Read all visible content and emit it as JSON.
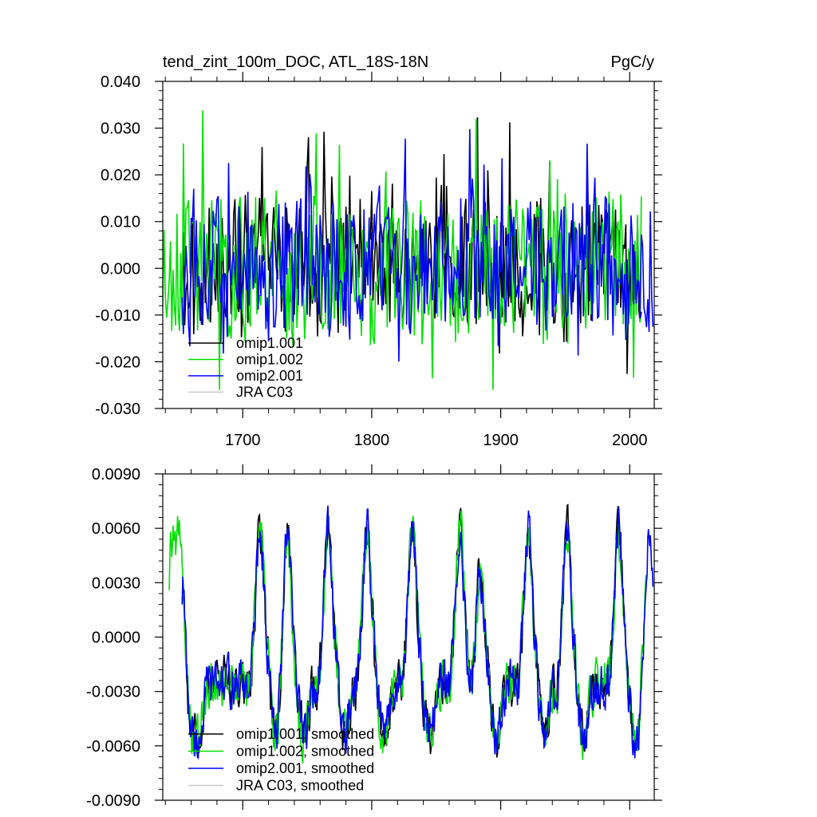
{
  "chart_data": [
    {
      "type": "line",
      "title": "tend_zint_100m_DOC, ATL_18S-18N",
      "units": "PgC/y",
      "xlim": [
        1638,
        2019
      ],
      "ylim": [
        -0.03,
        0.04
      ],
      "yticks": [
        -0.03,
        -0.02,
        -0.01,
        0.0,
        0.01,
        0.02,
        0.03,
        0.04
      ],
      "ytick_labels": [
        "-0.030",
        "-0.020",
        "-0.010",
        "0.000",
        "0.010",
        "0.020",
        "0.030",
        "0.040"
      ],
      "xticks": [
        1700,
        1800,
        1900,
        2000
      ],
      "xtick_labels": [
        "1700",
        "1800",
        "1900",
        "2000"
      ],
      "legend_position": "lower-left",
      "series": [
        {
          "name": "omip1.001",
          "color": "#000000",
          "x_start": 1653,
          "x_end": 2009,
          "amplitude": 0.0095,
          "seed": 11,
          "style": "noise"
        },
        {
          "name": "omip1.002",
          "color": "#00e000",
          "x_start": 1638,
          "x_end": 2009,
          "amplitude": 0.0105,
          "seed": 23,
          "style": "noise"
        },
        {
          "name": "omip2.001",
          "color": "#0000ff",
          "x_start": 1653,
          "x_end": 2018,
          "amplitude": 0.01,
          "seed": 37,
          "style": "noise"
        },
        {
          "name": "JRA C03",
          "color": "#c8c8c8",
          "x_start": null,
          "x_end": null,
          "amplitude": 0,
          "seed": 0,
          "style": "none"
        }
      ]
    },
    {
      "type": "line",
      "ylim": [
        -0.009,
        0.009
      ],
      "xlim": [
        1638,
        2019
      ],
      "yticks": [
        -0.009,
        -0.006,
        -0.003,
        0.0,
        0.003,
        0.006,
        0.009
      ],
      "ytick_labels": [
        "-0.0090",
        "-0.0060",
        "-0.0030",
        "0.0000",
        "0.0030",
        "0.0060",
        "0.0090"
      ],
      "xticks": [
        1700,
        1800,
        1900,
        2000
      ],
      "xtick_labels": [],
      "legend_position": "lower-left",
      "cycle_peaks": [
        1643,
        1651,
        1712,
        1733,
        1765,
        1795,
        1830,
        1867,
        1882,
        1920,
        1950,
        1990,
        2014
      ],
      "series": [
        {
          "name": "omip1.001, smoothed",
          "color": "#000000",
          "x_start": 1653,
          "x_end": 2009,
          "amplitude": 0.0045,
          "seed": 11,
          "style": "smooth"
        },
        {
          "name": "omip1.002, smoothed",
          "color": "#00e000",
          "x_start": 1643,
          "x_end": 2013,
          "amplitude": 0.0045,
          "seed": 23,
          "style": "smooth"
        },
        {
          "name": "omip2.001, smoothed",
          "color": "#0000ff",
          "x_start": 1653,
          "x_end": 2018,
          "amplitude": 0.0045,
          "seed": 37,
          "style": "smooth"
        },
        {
          "name": "JRA C03, smoothed",
          "color": "#c8c8c8",
          "x_start": null,
          "x_end": null,
          "amplitude": 0,
          "seed": 0,
          "style": "none"
        }
      ]
    }
  ]
}
